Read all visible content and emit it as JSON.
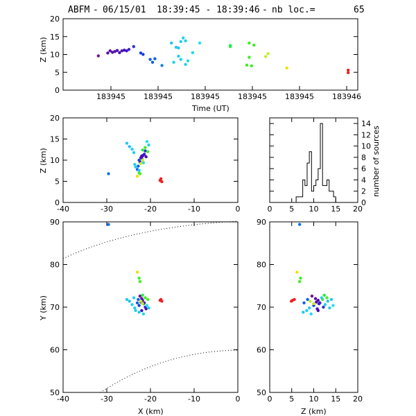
{
  "header": {
    "station": "ABFM",
    "date": "06/15/01",
    "time_range": "18:39:45 - 18:39:46",
    "count_label": "nb loc.=",
    "count": "65"
  },
  "chart_data": [
    {
      "id": "time-height",
      "type": "scatter",
      "xlabel": "Time (UT)",
      "ylabel": "Z (km)",
      "ylim": [
        0,
        20
      ],
      "y_ticks": [
        "0",
        "5",
        "10",
        "15",
        "20"
      ],
      "x_tick_labels": [
        "183945",
        "183945",
        "183945",
        "183945",
        "183945",
        "183946"
      ],
      "points": [
        {
          "t": 0.12,
          "z": 9.6,
          "c": "#7a1090"
        },
        {
          "t": 0.16,
          "z": 10.4,
          "c": "#5a10a8"
        },
        {
          "t": 0.17,
          "z": 11.0,
          "c": "#5a10a8"
        },
        {
          "t": 0.18,
          "z": 10.6,
          "c": "#5a10a8"
        },
        {
          "t": 0.19,
          "z": 10.8,
          "c": "#5a10a8"
        },
        {
          "t": 0.2,
          "z": 11.1,
          "c": "#4a10b8"
        },
        {
          "t": 0.21,
          "z": 10.5,
          "c": "#4a10b8"
        },
        {
          "t": 0.22,
          "z": 11.0,
          "c": "#4a10b8"
        },
        {
          "t": 0.23,
          "z": 11.2,
          "c": "#4010c0"
        },
        {
          "t": 0.24,
          "z": 11.0,
          "c": "#4010c0"
        },
        {
          "t": 0.25,
          "z": 11.4,
          "c": "#3a20c8"
        },
        {
          "t": 0.27,
          "z": 12.2,
          "c": "#3030d0"
        },
        {
          "t": 0.3,
          "z": 10.4,
          "c": "#1040e0"
        },
        {
          "t": 0.31,
          "z": 10.0,
          "c": "#1040e0"
        },
        {
          "t": 0.34,
          "z": 8.6,
          "c": "#1060e8"
        },
        {
          "t": 0.35,
          "z": 7.8,
          "c": "#1060e8"
        },
        {
          "t": 0.36,
          "z": 8.8,
          "c": "#1060e8"
        },
        {
          "t": 0.39,
          "z": 6.9,
          "c": "#1080f0"
        },
        {
          "t": 0.43,
          "z": 13.2,
          "c": "#20c0f0"
        },
        {
          "t": 0.45,
          "z": 12.0,
          "c": "#20c8f0"
        },
        {
          "t": 0.46,
          "z": 11.8,
          "c": "#20c8f0"
        },
        {
          "t": 0.47,
          "z": 13.6,
          "c": "#20d0f0"
        },
        {
          "t": 0.48,
          "z": 14.6,
          "c": "#20d0f0"
        },
        {
          "t": 0.49,
          "z": 13.8,
          "c": "#20d0f0"
        },
        {
          "t": 0.46,
          "z": 9.5,
          "c": "#20d0f0"
        },
        {
          "t": 0.47,
          "z": 8.6,
          "c": "#20d0f0"
        },
        {
          "t": 0.44,
          "z": 7.8,
          "c": "#20d0f0"
        },
        {
          "t": 0.49,
          "z": 7.2,
          "c": "#20d0f0"
        },
        {
          "t": 0.5,
          "z": 8.2,
          "c": "#20d8f0"
        },
        {
          "t": 0.52,
          "z": 10.5,
          "c": "#20d8f0"
        },
        {
          "t": 0.55,
          "z": 13.2,
          "c": "#20e0f0"
        },
        {
          "t": 0.68,
          "z": 12.5,
          "c": "#20f040"
        },
        {
          "t": 0.68,
          "z": 12.2,
          "c": "#20f040"
        },
        {
          "t": 0.76,
          "z": 13.2,
          "c": "#40f020"
        },
        {
          "t": 0.78,
          "z": 12.6,
          "c": "#40f020"
        },
        {
          "t": 0.76,
          "z": 9.2,
          "c": "#40f020"
        },
        {
          "t": 0.75,
          "z": 7.0,
          "c": "#40f020"
        },
        {
          "t": 0.77,
          "z": 6.8,
          "c": "#40f020"
        },
        {
          "t": 0.83,
          "z": 9.4,
          "c": "#c0f020"
        },
        {
          "t": 0.84,
          "z": 10.2,
          "c": "#c0f020"
        },
        {
          "t": 0.92,
          "z": 6.2,
          "c": "#f0e000"
        },
        {
          "t": 1.18,
          "z": 5.6,
          "c": "#f02020"
        },
        {
          "t": 1.18,
          "z": 4.9,
          "c": "#f02020"
        }
      ]
    },
    {
      "id": "x-z",
      "type": "scatter",
      "ylabel": "Z (km)",
      "xlim": [
        -40,
        0
      ],
      "ylim": [
        0,
        20
      ],
      "x_ticks": [
        "-40",
        "-30",
        "-20",
        "-10",
        "0"
      ],
      "y_ticks": [
        "0",
        "5",
        "10",
        "15",
        "20"
      ]
    },
    {
      "id": "histogram",
      "type": "bar",
      "ylabel": "number of sources",
      "xlim": [
        0,
        20
      ],
      "ylim": [
        0,
        15
      ],
      "x_ticks": [
        "0",
        "5",
        "10",
        "15",
        "20"
      ],
      "y_ticks": [
        "0",
        "2",
        "4",
        "6",
        "8",
        "10",
        "12",
        "14"
      ],
      "bin_width": 0.5,
      "bins_start": 0,
      "counts": [
        0,
        0,
        0,
        0,
        0,
        0,
        0,
        0,
        0,
        0,
        0,
        0,
        1,
        1,
        1,
        4,
        3,
        7,
        9,
        2,
        3,
        4,
        6,
        14,
        3,
        3,
        4,
        2,
        2,
        1,
        0,
        0,
        0,
        0,
        0,
        0,
        0,
        0,
        0,
        0
      ]
    },
    {
      "id": "x-y",
      "type": "scatter",
      "xlabel": "X (km)",
      "ylabel": "Y (km)",
      "xlim": [
        -40,
        0
      ],
      "ylim": [
        50,
        90
      ],
      "x_ticks": [
        "-40",
        "-30",
        "-20",
        "-10",
        "0"
      ],
      "y_ticks": [
        "50",
        "60",
        "70",
        "80",
        "90"
      ]
    },
    {
      "id": "z-y",
      "type": "scatter",
      "xlabel": "Z (km)",
      "xlim": [
        0,
        20
      ],
      "ylim": [
        50,
        90
      ],
      "x_ticks": [
        "0",
        "5",
        "10",
        "15",
        "20"
      ],
      "y_ticks": [
        "50",
        "60",
        "70",
        "80",
        "90"
      ]
    }
  ],
  "sources": [
    {
      "x": -29.6,
      "y": 89.4,
      "z": 6.8,
      "c": "#1070f0"
    },
    {
      "x": -23.0,
      "y": 78.2,
      "z": 6.2,
      "c": "#f0e000"
    },
    {
      "x": -22.6,
      "y": 76.8,
      "z": 7.0,
      "c": "#40f020"
    },
    {
      "x": -22.4,
      "y": 76.0,
      "z": 6.8,
      "c": "#40f020"
    },
    {
      "x": -17.6,
      "y": 71.8,
      "z": 5.6,
      "c": "#f02020"
    },
    {
      "x": -17.4,
      "y": 71.4,
      "z": 4.9,
      "c": "#f02020"
    },
    {
      "x": -17.8,
      "y": 71.6,
      "z": 5.2,
      "c": "#f02020"
    },
    {
      "x": -22.4,
      "y": 72.6,
      "z": 9.6,
      "c": "#7a1090"
    },
    {
      "x": -22.0,
      "y": 72.0,
      "z": 10.4,
      "c": "#5a10a8"
    },
    {
      "x": -21.8,
      "y": 71.6,
      "z": 11.0,
      "c": "#5a10a8"
    },
    {
      "x": -22.2,
      "y": 71.2,
      "z": 10.6,
      "c": "#4a10b8"
    },
    {
      "x": -21.6,
      "y": 70.8,
      "z": 11.2,
      "c": "#4010c0"
    },
    {
      "x": -21.4,
      "y": 71.0,
      "z": 11.4,
      "c": "#3a20c8"
    },
    {
      "x": -22.6,
      "y": 70.4,
      "z": 10.0,
      "c": "#1040e0"
    },
    {
      "x": -21.2,
      "y": 70.0,
      "z": 12.2,
      "c": "#3030d0"
    },
    {
      "x": -22.8,
      "y": 71.8,
      "z": 8.6,
      "c": "#1060e8"
    },
    {
      "x": -23.0,
      "y": 71.0,
      "z": 7.8,
      "c": "#1060e8"
    },
    {
      "x": -21.0,
      "y": 69.6,
      "z": 10.8,
      "c": "#4a10b8"
    },
    {
      "x": -22.0,
      "y": 69.2,
      "z": 11.0,
      "c": "#4010c0"
    },
    {
      "x": -24.8,
      "y": 71.4,
      "z": 13.2,
      "c": "#20c0f0"
    },
    {
      "x": -25.4,
      "y": 71.8,
      "z": 14.0,
      "c": "#20c8f0"
    },
    {
      "x": -24.2,
      "y": 70.6,
      "z": 12.6,
      "c": "#20d0f0"
    },
    {
      "x": -23.6,
      "y": 69.8,
      "z": 9.0,
      "c": "#20d0f0"
    },
    {
      "x": -23.4,
      "y": 69.2,
      "z": 8.4,
      "c": "#20d0f0"
    },
    {
      "x": -22.6,
      "y": 68.8,
      "z": 7.6,
      "c": "#20d0f0"
    },
    {
      "x": -21.6,
      "y": 68.4,
      "z": 9.4,
      "c": "#20d8f0"
    },
    {
      "x": -20.8,
      "y": 70.4,
      "z": 14.4,
      "c": "#20e0f0"
    },
    {
      "x": -21.8,
      "y": 72.8,
      "z": 12.4,
      "c": "#20f040"
    },
    {
      "x": -21.2,
      "y": 72.2,
      "z": 13.0,
      "c": "#40f020"
    },
    {
      "x": -20.6,
      "y": 71.8,
      "z": 12.0,
      "c": "#40f020"
    },
    {
      "x": -22.2,
      "y": 71.4,
      "z": 9.2,
      "c": "#c0f020"
    },
    {
      "x": -21.8,
      "y": 70.8,
      "z": 10.0,
      "c": "#c0f020"
    },
    {
      "x": -23.8,
      "y": 72.2,
      "z": 11.8,
      "c": "#20d0f0"
    },
    {
      "x": -20.4,
      "y": 69.8,
      "z": 13.6,
      "c": "#20d0f0"
    }
  ]
}
